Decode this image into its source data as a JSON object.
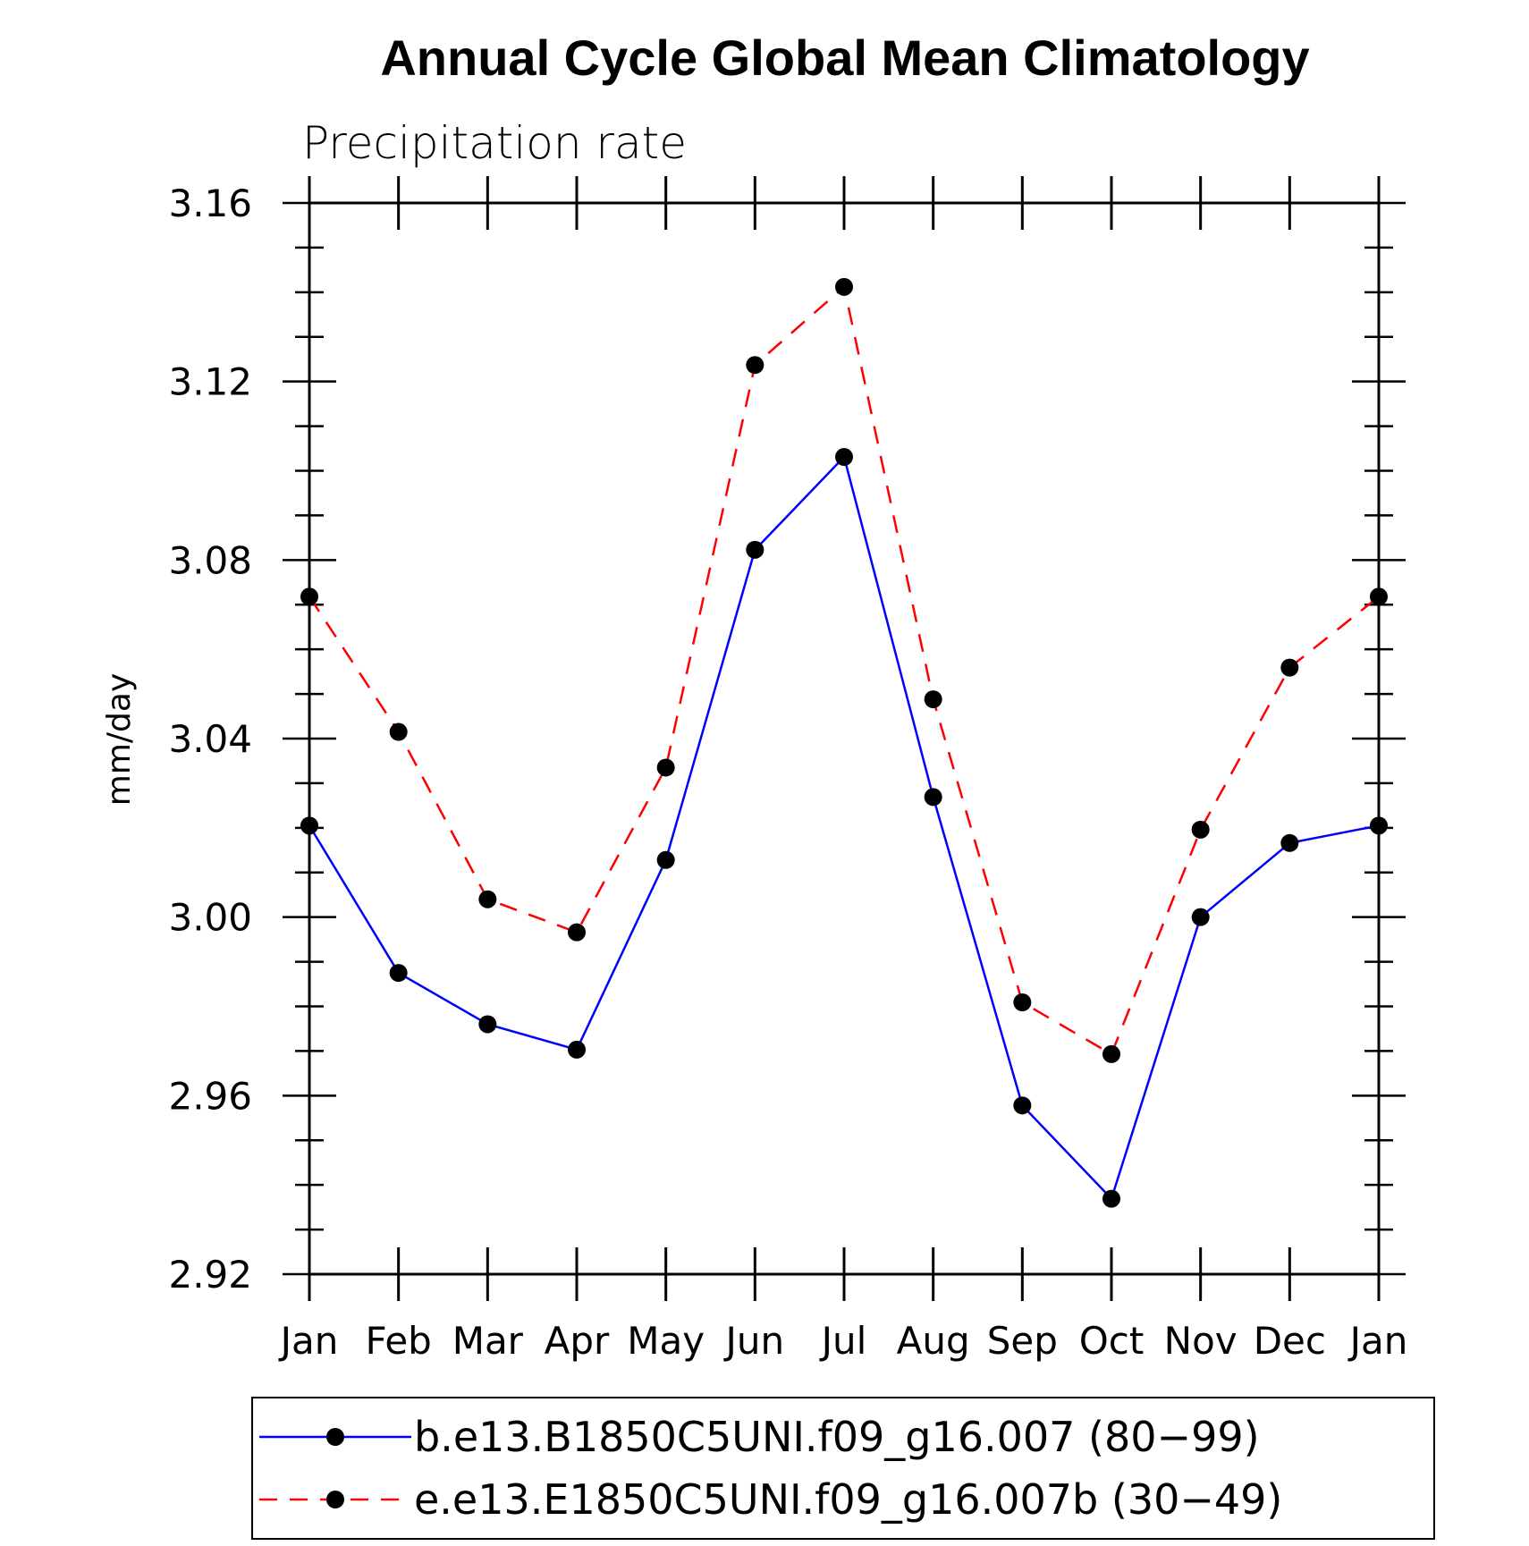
{
  "chart_data": {
    "type": "line",
    "title": "Annual Cycle Global Mean Climatology",
    "subtitle": "Precipitation rate",
    "xlabel": "",
    "ylabel": "mm/day",
    "categories": [
      "Jan",
      "Feb",
      "Mar",
      "Apr",
      "May",
      "Jun",
      "Jul",
      "Aug",
      "Sep",
      "Oct",
      "Nov",
      "Dec",
      "Jan"
    ],
    "ylim": [
      2.92,
      3.16
    ],
    "yticks": [
      "3.16",
      "3.12",
      "3.08",
      "3.04",
      "3.00",
      "2.96",
      "2.92"
    ],
    "ytick_values": [
      3.16,
      3.12,
      3.08,
      3.04,
      3.0,
      2.96,
      2.92
    ],
    "series": [
      {
        "name": "b.e13.B1850C5UNI.f09_g16.007 (80−99)",
        "color": "#0000ff",
        "style": "solid",
        "values": [
          3.0205,
          2.9875,
          2.976,
          2.9703,
          3.0128,
          3.0823,
          3.1031,
          3.0269,
          2.9578,
          2.9369,
          3.0,
          3.0166,
          3.0205
        ]
      },
      {
        "name": "e.e13.E1850C5UNI.f09_g16.007b (30−49)",
        "color": "#ff0000",
        "style": "dashed",
        "values": [
          3.0718,
          3.0415,
          3.004,
          2.9966,
          3.0335,
          3.1237,
          3.1412,
          3.0488,
          2.9809,
          2.9693,
          3.0196,
          3.0559,
          3.0718
        ]
      }
    ],
    "legend_position": "bottom"
  }
}
